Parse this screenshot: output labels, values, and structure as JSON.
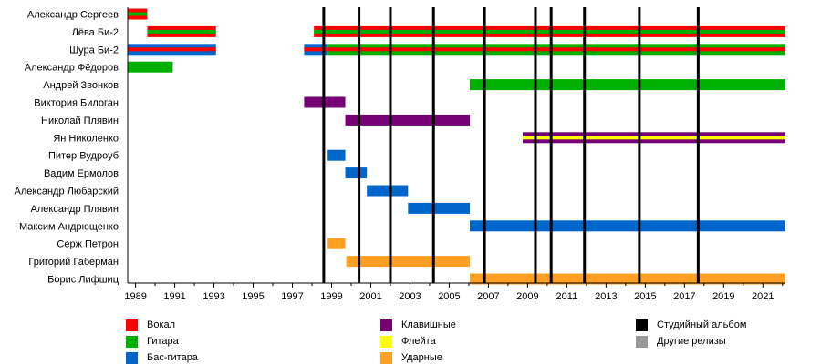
{
  "chart_data": {
    "type": "timeline",
    "xlim": [
      1988.6,
      2022.15
    ],
    "x_ticks_major": [
      1989,
      1991,
      1993,
      1995,
      1997,
      1999,
      2001,
      2003,
      2005,
      2007,
      2009,
      2011,
      2013,
      2015,
      2017,
      2019,
      2021
    ],
    "x_tick_labels": [
      "1989",
      "1991",
      "1993",
      "1995",
      "1997",
      "1999",
      "2001",
      "2003",
      "2005",
      "2007",
      "2009",
      "2011",
      "2013",
      "2015",
      "2017",
      "2019",
      "2021"
    ],
    "roles": {
      "vocal": {
        "label": "Вокал",
        "color": "#ff0000"
      },
      "guitar": {
        "label": "Гитара",
        "color": "#00b000"
      },
      "bass": {
        "label": "Бас-гитара",
        "color": "#0066cc"
      },
      "keys": {
        "label": "Клавишные",
        "color": "#770077"
      },
      "flute": {
        "label": "Флейта",
        "color": "#ffff00"
      },
      "drums": {
        "label": "Ударные",
        "color": "#ffa024"
      },
      "studio": {
        "label": "Студийный альбом",
        "color": "#000000"
      },
      "other": {
        "label": "Другие релизы",
        "color": "#999999"
      }
    },
    "legend": [
      [
        "vocal",
        "guitar",
        "bass"
      ],
      [
        "keys",
        "flute",
        "drums"
      ],
      [
        "studio",
        "other"
      ]
    ],
    "members": [
      {
        "name": "Александр Сергеев",
        "periods": [
          {
            "start": 1988.6,
            "end": 1989.6,
            "outer": "vocal",
            "inner": "guitar"
          }
        ]
      },
      {
        "name": "Лёва Би-2",
        "periods": [
          {
            "start": 1989.6,
            "end": 1993.1,
            "outer": "vocal",
            "inner": "guitar"
          },
          {
            "start": 1998.1,
            "end": 2022.15,
            "outer": "vocal",
            "inner": "guitar"
          }
        ]
      },
      {
        "name": "Шура Би-2",
        "periods": [
          {
            "start": 1988.6,
            "end": 1993.1,
            "outer": "bass",
            "inner": "vocal"
          },
          {
            "start": 1997.6,
            "end": 1998.8,
            "outer": "bass",
            "inner": "vocal"
          },
          {
            "start": 1998.8,
            "end": 2022.15,
            "outer": "guitar",
            "inner": "vocal"
          }
        ]
      },
      {
        "name": "Александр Фёдоров",
        "periods": [
          {
            "start": 1988.6,
            "end": 1990.9,
            "outer": "guitar"
          }
        ]
      },
      {
        "name": "Андрей Звонков",
        "periods": [
          {
            "start": 2006.05,
            "end": 2022.15,
            "outer": "guitar"
          }
        ]
      },
      {
        "name": "Виктория Билоган",
        "periods": [
          {
            "start": 1997.6,
            "end": 1999.7,
            "outer": "keys"
          }
        ]
      },
      {
        "name": "Николай Плявин",
        "periods": [
          {
            "start": 1999.7,
            "end": 2006.05,
            "outer": "keys"
          }
        ]
      },
      {
        "name": "Ян Николенко",
        "periods": [
          {
            "start": 2008.75,
            "end": 2022.15,
            "outer": "keys",
            "inner": "flute"
          }
        ]
      },
      {
        "name": "Питер Вудроуб",
        "periods": [
          {
            "start": 1998.8,
            "end": 1999.7,
            "outer": "bass"
          }
        ]
      },
      {
        "name": "Вадим Ермолов",
        "periods": [
          {
            "start": 1999.7,
            "end": 2000.8,
            "outer": "bass"
          }
        ]
      },
      {
        "name": "Александр Любарский",
        "periods": [
          {
            "start": 2000.8,
            "end": 2002.9,
            "outer": "bass"
          }
        ]
      },
      {
        "name": "Александр Плявин",
        "periods": [
          {
            "start": 2002.9,
            "end": 2006.05,
            "outer": "bass"
          }
        ]
      },
      {
        "name": "Максим Андрющенко",
        "periods": [
          {
            "start": 2006.05,
            "end": 2022.15,
            "outer": "bass"
          }
        ]
      },
      {
        "name": "Серж Петрон",
        "periods": [
          {
            "start": 1998.8,
            "end": 1999.7,
            "outer": "drums"
          }
        ]
      },
      {
        "name": "Григорий Габерман",
        "periods": [
          {
            "start": 1999.75,
            "end": 2006.05,
            "outer": "drums"
          }
        ]
      },
      {
        "name": "Борис Лифшиц",
        "periods": [
          {
            "start": 2006.05,
            "end": 2022.15,
            "outer": "drums"
          }
        ]
      }
    ],
    "studio_albums": [
      1998.6,
      2000.4,
      2002.0,
      2004.2,
      2006.8,
      2009.4,
      2010.2,
      2011.9,
      2014.7,
      2017.7
    ]
  }
}
